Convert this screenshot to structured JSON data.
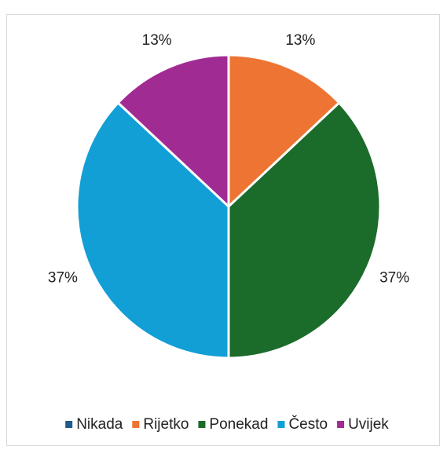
{
  "chart_data": {
    "type": "pie",
    "categories": [
      "Nikada",
      "Rijetko",
      "Ponekad",
      "Često",
      "Uvijek"
    ],
    "values": [
      0,
      13,
      37,
      37,
      13
    ],
    "value_labels": [
      null,
      "13%",
      "37%",
      "37%",
      "13%"
    ],
    "colors": [
      "#1f5c8b",
      "#ed7432",
      "#1b6b2a",
      "#129fd6",
      "#a02b93"
    ],
    "legend": "bottom"
  }
}
